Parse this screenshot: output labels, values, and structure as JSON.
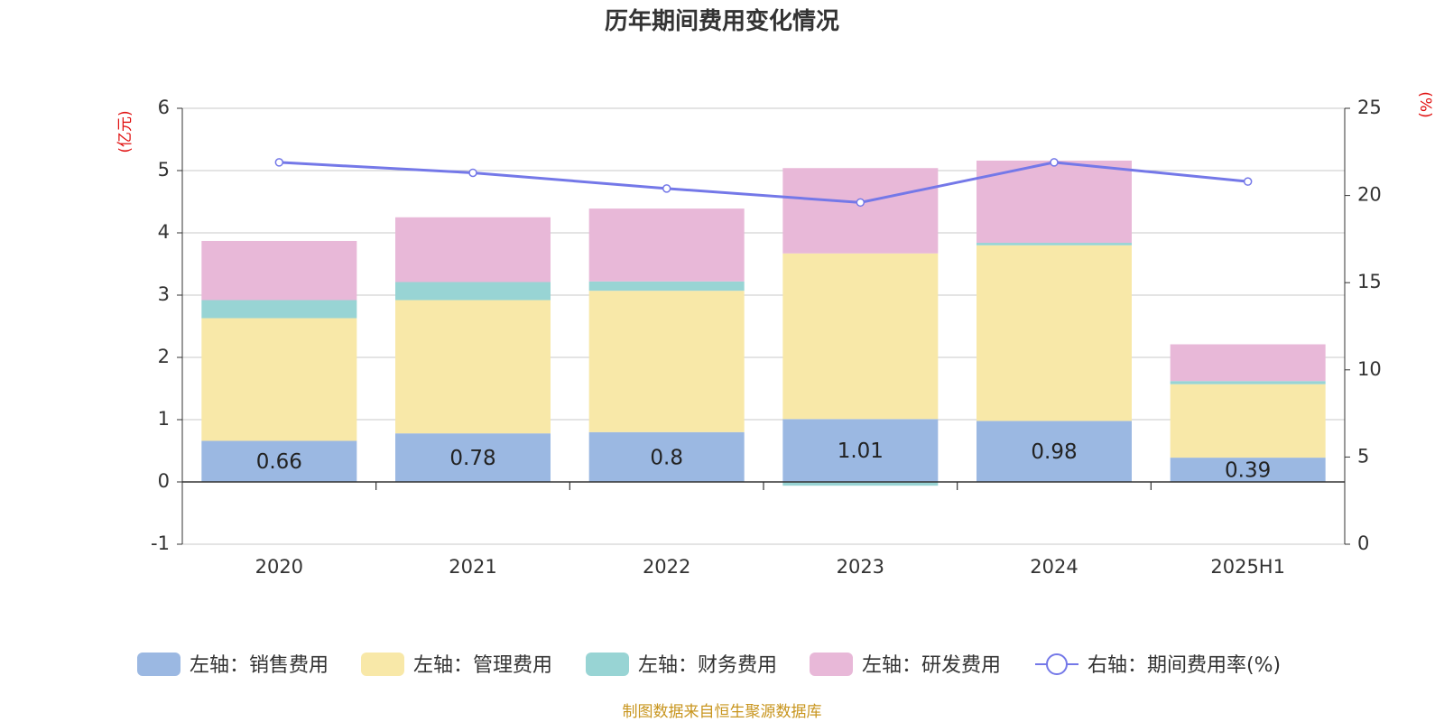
{
  "colors": {
    "sales": "#9bb8e2",
    "admin": "#f8e8a8",
    "finance": "#98d4d4",
    "rd": "#e8b8d8",
    "rate": "#7478e8",
    "unit_text": "#e01010",
    "source_text": "#c8951e"
  },
  "chart_data": {
    "type": "bar",
    "stacked": true,
    "title": "历年期间费用变化情况",
    "left_unit": "(亿元)",
    "right_unit": "(%)",
    "categories": [
      "2020",
      "2021",
      "2022",
      "2023",
      "2024",
      "2025H1"
    ],
    "y_left": {
      "min": -1,
      "max": 6,
      "ticks": [
        -1,
        0,
        1,
        2,
        3,
        4,
        5,
        6
      ]
    },
    "y_right": {
      "min": 0,
      "max": 25,
      "ticks": [
        0,
        5,
        10,
        15,
        20,
        25
      ]
    },
    "grid": true,
    "legend_position": "bottom",
    "series": [
      {
        "name": "左轴：销售费用",
        "key": "sales",
        "axis": "left",
        "type": "bar",
        "values": [
          0.66,
          0.78,
          0.8,
          1.01,
          0.98,
          0.39
        ],
        "labels": [
          "0.66",
          "0.78",
          "0.8",
          "1.01",
          "0.98",
          "0.39"
        ]
      },
      {
        "name": "左轴：管理费用",
        "key": "admin",
        "axis": "left",
        "type": "bar",
        "values": [
          1.97,
          2.14,
          2.27,
          2.66,
          2.82,
          1.18
        ]
      },
      {
        "name": "左轴：财务费用",
        "key": "finance",
        "axis": "left",
        "type": "bar",
        "values": [
          0.29,
          0.29,
          0.15,
          -0.06,
          0.04,
          0.05
        ]
      },
      {
        "name": "左轴：研发费用",
        "key": "rd",
        "axis": "left",
        "type": "bar",
        "values": [
          0.95,
          1.04,
          1.17,
          1.37,
          1.32,
          0.59
        ]
      },
      {
        "name": "右轴：期间费用率(%)",
        "key": "rate",
        "axis": "right",
        "type": "line",
        "values": [
          21.9,
          21.3,
          20.4,
          19.6,
          21.9,
          20.8
        ]
      }
    ]
  },
  "footer": {
    "source": "制图数据来自恒生聚源数据库"
  }
}
